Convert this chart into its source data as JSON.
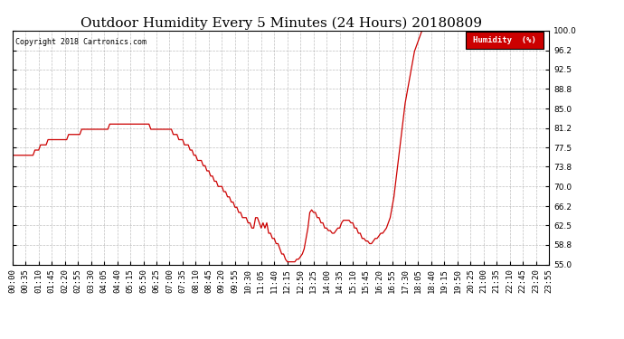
{
  "title": "Outdoor Humidity Every 5 Minutes (24 Hours) 20180809",
  "copyright": "Copyright 2018 Cartronics.com",
  "ylabel": "Humidity  (%)",
  "ylim": [
    55.0,
    100.0
  ],
  "yticks": [
    55.0,
    58.8,
    62.5,
    66.2,
    70.0,
    73.8,
    77.5,
    81.2,
    85.0,
    88.8,
    92.5,
    96.2,
    100.0
  ],
  "line_color": "#cc0000",
  "background_color": "#ffffff",
  "grid_color": "#b0b0b0",
  "title_fontsize": 11,
  "tick_fontsize": 6.5,
  "legend_bg": "#cc0000",
  "legend_text_color": "#ffffff",
  "humidity_data": [
    76.0,
    76.0,
    76.0,
    76.0,
    76.0,
    76.0,
    76.0,
    76.0,
    76.0,
    76.0,
    76.0,
    76.0,
    77.0,
    77.0,
    77.0,
    78.0,
    78.0,
    78.0,
    78.0,
    79.0,
    79.0,
    79.0,
    79.0,
    79.0,
    79.0,
    79.0,
    79.0,
    79.0,
    79.0,
    79.0,
    80.0,
    80.0,
    80.0,
    80.0,
    80.0,
    80.0,
    80.0,
    81.0,
    81.0,
    81.0,
    81.0,
    81.0,
    81.0,
    81.0,
    81.0,
    81.0,
    81.0,
    81.0,
    81.0,
    81.0,
    81.0,
    81.0,
    82.0,
    82.0,
    82.0,
    82.0,
    82.0,
    82.0,
    82.0,
    82.0,
    82.0,
    82.0,
    82.0,
    82.0,
    82.0,
    82.0,
    82.0,
    82.0,
    82.0,
    82.0,
    82.0,
    82.0,
    82.0,
    82.0,
    81.0,
    81.0,
    81.0,
    81.0,
    81.0,
    81.0,
    81.0,
    81.0,
    81.0,
    81.0,
    81.0,
    81.0,
    80.0,
    80.0,
    80.0,
    79.0,
    79.0,
    79.0,
    78.0,
    78.0,
    78.0,
    77.0,
    77.0,
    76.0,
    76.0,
    75.0,
    75.0,
    75.0,
    74.0,
    74.0,
    73.0,
    73.0,
    72.0,
    72.0,
    71.0,
    71.0,
    70.0,
    70.0,
    70.0,
    69.0,
    69.0,
    68.0,
    68.0,
    67.0,
    67.0,
    66.0,
    66.0,
    65.0,
    65.0,
    64.0,
    64.0,
    64.0,
    63.0,
    63.0,
    62.0,
    62.0,
    64.0,
    64.0,
    63.0,
    62.0,
    63.0,
    62.0,
    63.0,
    61.0,
    61.0,
    60.0,
    60.0,
    59.0,
    59.0,
    58.0,
    57.0,
    57.0,
    56.0,
    55.5,
    55.5,
    55.5,
    55.5,
    55.5,
    56.0,
    56.0,
    56.5,
    57.0,
    58.0,
    60.0,
    62.0,
    65.0,
    65.5,
    65.0,
    65.0,
    64.0,
    64.0,
    63.0,
    63.0,
    62.0,
    62.0,
    61.5,
    61.5,
    61.0,
    61.0,
    61.5,
    62.0,
    62.0,
    63.0,
    63.5,
    63.5,
    63.5,
    63.5,
    63.0,
    63.0,
    62.0,
    62.0,
    61.0,
    61.0,
    60.0,
    60.0,
    59.5,
    59.5,
    59.0,
    59.0,
    59.5,
    60.0,
    60.0,
    60.5,
    61.0,
    61.0,
    61.5,
    62.0,
    63.0,
    64.0,
    66.0,
    68.0,
    71.0,
    74.0,
    77.0,
    80.0,
    83.0,
    86.0,
    88.0,
    90.0,
    92.0,
    94.0,
    96.0,
    97.0,
    98.0,
    99.0,
    100.0,
    100.0,
    100.0,
    100.0,
    100.0,
    100.0,
    100.0,
    100.0,
    100.0,
    100.0,
    100.0,
    100.0,
    100.0,
    100.0,
    100.0,
    100.0,
    100.0,
    100.0,
    100.0,
    100.0,
    100.0,
    100.0,
    100.0,
    100.0,
    100.0,
    100.0,
    100.0,
    100.0,
    100.0,
    100.0,
    100.0,
    100.0,
    100.0,
    100.0,
    100.0,
    100.0,
    100.0,
    100.0,
    100.0,
    100.0,
    100.0,
    100.0,
    100.0,
    100.0,
    100.0,
    100.0,
    100.0,
    100.0,
    100.0,
    100.0,
    100.0,
    100.0,
    100.0,
    100.0,
    100.0,
    100.0,
    100.0,
    100.0,
    100.0,
    100.0,
    100.0,
    100.0,
    100.0,
    100.0,
    100.0,
    100.0,
    100.0,
    100.0,
    100.0
  ]
}
